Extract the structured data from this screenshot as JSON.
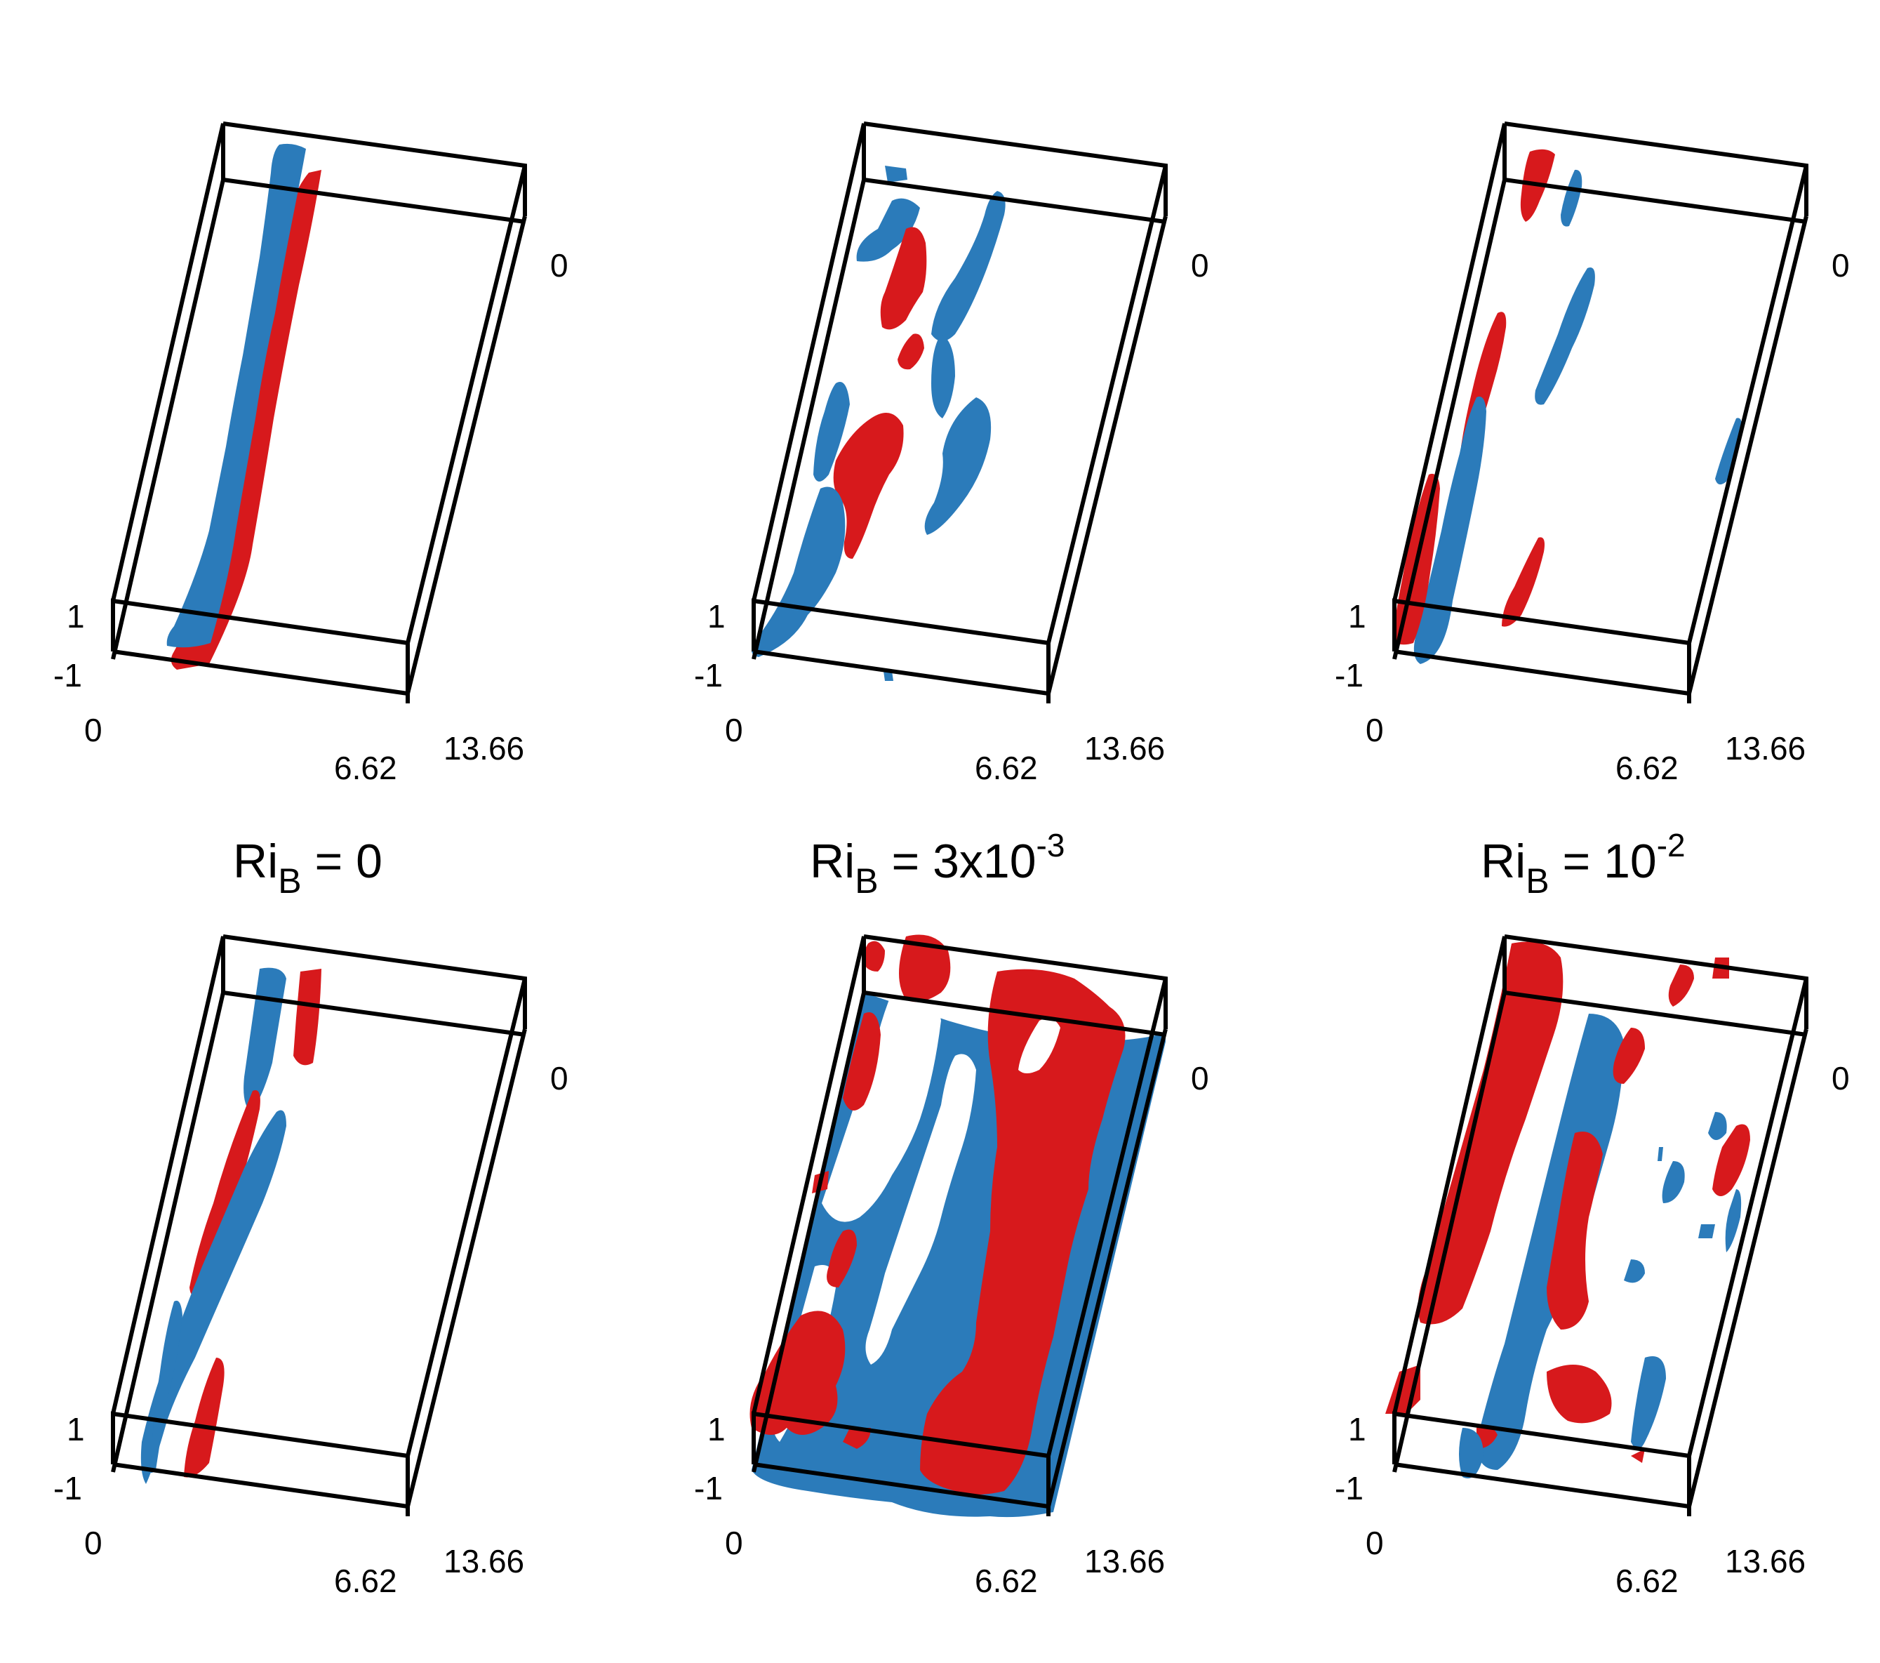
{
  "colors": {
    "positive": "#d7191c",
    "negative": "#2b7bba",
    "axes": "#000000"
  },
  "axis_labels": {
    "z_top": "1",
    "z_bottom": "-1",
    "x_start": "0",
    "x_end": "6.62",
    "y_end": "13.66",
    "y_start": "0"
  },
  "panel_titles": [
    {
      "base": "Ri",
      "sub": "B",
      "rest": " = 0",
      "sup": ""
    },
    {
      "base": "Ri",
      "sub": "B",
      "rest": " = 3x10",
      "sup": "-3"
    },
    {
      "base": "Ri",
      "sub": "B",
      "rest": " = 10",
      "sup": "-2"
    }
  ],
  "panels": [
    {
      "row": 1,
      "column": 1,
      "structure": "single-streak"
    },
    {
      "row": 1,
      "column": 2,
      "structure": "broken-streaks"
    },
    {
      "row": 1,
      "column": 3,
      "structure": "sparse-streaks"
    },
    {
      "row": 2,
      "column": 1,
      "structure": "single-streak"
    },
    {
      "row": 2,
      "column": 2,
      "structure": "wide-streaks"
    },
    {
      "row": 2,
      "column": 3,
      "structure": "fragmented-streaks"
    }
  ]
}
